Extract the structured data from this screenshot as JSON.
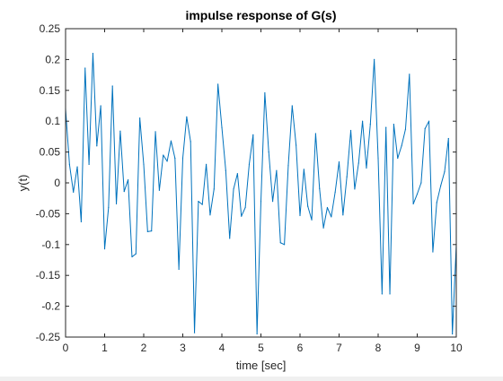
{
  "colors": {
    "figure_background": "#ffffff",
    "axes_background": "#ffffff",
    "axis_color": "#262626",
    "series_color": "#0072bd"
  },
  "chart_data": {
    "type": "line",
    "title": "impulse response of G(s)",
    "xlabel": "time [sec]",
    "ylabel": "y(t)",
    "xlim": [
      0,
      10
    ],
    "ylim": [
      -0.25,
      0.25
    ],
    "xticks": [
      0,
      1,
      2,
      3,
      4,
      5,
      6,
      7,
      8,
      9,
      10
    ],
    "xtick_labels": [
      "0",
      "1",
      "2",
      "3",
      "4",
      "5",
      "6",
      "7",
      "8",
      "9",
      "10"
    ],
    "yticks": [
      -0.25,
      -0.2,
      -0.15,
      -0.1,
      -0.05,
      0,
      0.05,
      0.1,
      0.15,
      0.2,
      0.25
    ],
    "ytick_labels": [
      "-0.25",
      "-0.2",
      "-0.15",
      "-0.1",
      "-0.05",
      "0",
      "0.05",
      "0.1",
      "0.15",
      "0.2",
      "0.25"
    ],
    "grid": false,
    "box": true,
    "series": [
      {
        "x": [
          0,
          0.1,
          0.2,
          0.3,
          0.4,
          0.5,
          0.6,
          0.7,
          0.8,
          0.9,
          1.0,
          1.1,
          1.2,
          1.3,
          1.4,
          1.5,
          1.6,
          1.7,
          1.8,
          1.9,
          2.0,
          2.1,
          2.2,
          2.3,
          2.4,
          2.5,
          2.6,
          2.7,
          2.8,
          2.9,
          3.0,
          3.1,
          3.2,
          3.3,
          3.4,
          3.5,
          3.6,
          3.7,
          3.8,
          3.9,
          4.0,
          4.1,
          4.2,
          4.3,
          4.4,
          4.5,
          4.6,
          4.7,
          4.8,
          4.9,
          5.0,
          5.1,
          5.2,
          5.3,
          5.4,
          5.5,
          5.6,
          5.7,
          5.8,
          5.9,
          6.0,
          6.1,
          6.2,
          6.3,
          6.4,
          6.5,
          6.6,
          6.7,
          6.8,
          6.9,
          7.0,
          7.1,
          7.2,
          7.3,
          7.4,
          7.5,
          7.6,
          7.7,
          7.8,
          7.9,
          8.0,
          8.1,
          8.2,
          8.3,
          8.4,
          8.5,
          8.6,
          8.7,
          8.8,
          8.9,
          9.0,
          9.1,
          9.2,
          9.3,
          9.4,
          9.5,
          9.6,
          9.7,
          9.8,
          9.9,
          10.0
        ],
        "y": [
          0.12,
          0.03,
          -0.015,
          0.026,
          -0.063,
          0.186,
          0.03,
          0.21,
          0.06,
          0.125,
          -0.107,
          -0.04,
          0.157,
          -0.034,
          0.084,
          -0.014,
          0.005,
          -0.12,
          -0.115,
          0.105,
          0.03,
          -0.079,
          -0.078,
          0.083,
          -0.012,
          0.045,
          0.035,
          0.068,
          0.04,
          -0.14,
          0.04,
          0.107,
          0.067,
          -0.243,
          -0.03,
          -0.035,
          0.03,
          -0.052,
          -0.01,
          0.16,
          0.09,
          0.02,
          -0.09,
          -0.01,
          0.015,
          -0.054,
          -0.04,
          0.03,
          0.078,
          -0.245,
          -0.03,
          0.146,
          0.05,
          -0.03,
          0.02,
          -0.097,
          -0.1,
          0.028,
          0.125,
          0.061,
          -0.053,
          0.022,
          -0.038,
          -0.06,
          0.08,
          -0.009,
          -0.073,
          -0.04,
          -0.055,
          -0.015,
          0.034,
          -0.052,
          0.01,
          0.085,
          -0.01,
          0.032,
          0.1,
          0.024,
          0.095,
          0.2,
          0.04,
          -0.18,
          0.09,
          -0.18,
          0.095,
          0.04,
          0.06,
          0.087,
          0.176,
          -0.034,
          -0.018,
          0.0,
          0.088,
          0.1,
          -0.112,
          -0.032,
          -0.005,
          0.018,
          0.072,
          -0.245,
          -0.1
        ]
      }
    ]
  }
}
